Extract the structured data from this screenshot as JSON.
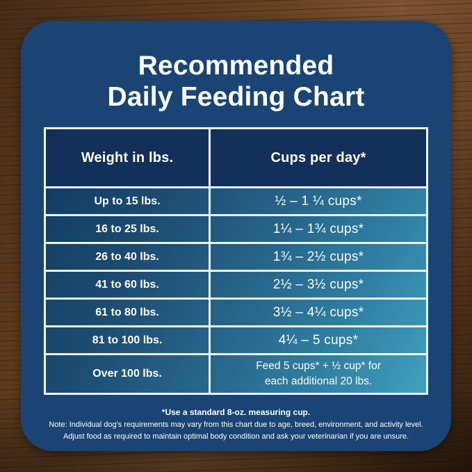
{
  "title": {
    "line1": "Recommended",
    "line2": "Daily Feeding Chart"
  },
  "table": {
    "headers": {
      "weight": "Weight in lbs.",
      "cups": "Cups per day*"
    },
    "rows": [
      {
        "weight": "Up to 15 lbs.",
        "cups": "½ – 1 ¼ cups*"
      },
      {
        "weight": "16 to 25 lbs.",
        "cups": "1¼ – 1¾  cups*"
      },
      {
        "weight": "26 to 40 lbs.",
        "cups": "1¾ – 2½ cups*"
      },
      {
        "weight": "41 to 60 lbs.",
        "cups": "2½ – 3½ cups*"
      },
      {
        "weight": "61 to 80 lbs.",
        "cups": "3½ – 4¼ cups*"
      },
      {
        "weight": "81 to 100 lbs.",
        "cups": "4¼ – 5 cups*"
      }
    ],
    "last_row": {
      "weight": "Over 100 lbs.",
      "cups_line1": "Feed 5 cups* + ½ cup* for",
      "cups_line2": "each additional 20 lbs."
    }
  },
  "notes": {
    "measuring_cup": "*Use a standard 8-oz. measuring cup.",
    "variance": "Note: Individual dog's requirements may vary from this chart due to age, breed, environment, and activity level.",
    "adjust": "Adjust food as required to maintain optimal body condition and ask your veterinarian if you are unsure."
  },
  "colors": {
    "card_blue": "#1a4474",
    "header_navy": "#12305a",
    "row_gradient_start": "#0f3a5e",
    "row_gradient_end": "#42a0bd",
    "divider_white": "#eef5f8",
    "text_white": "#ffffff",
    "wood_brown": "#654324"
  },
  "chart_data": {
    "type": "table",
    "title": "Recommended Daily Feeding Chart",
    "columns": [
      "Weight in lbs.",
      "Cups per day*"
    ],
    "rows": [
      [
        "Up to 15 lbs.",
        "½ – 1 ¼ cups*"
      ],
      [
        "16 to 25 lbs.",
        "1¼ – 1¾ cups*"
      ],
      [
        "26 to 40 lbs.",
        "1¾ – 2½ cups*"
      ],
      [
        "41 to 60 lbs.",
        "2½ – 3½ cups*"
      ],
      [
        "61 to 80 lbs.",
        "3½ – 4¼ cups*"
      ],
      [
        "81 to 100 lbs.",
        "4¼ – 5 cups*"
      ],
      [
        "Over 100 lbs.",
        "Feed 5 cups* + ½ cup* for each additional 20 lbs."
      ]
    ],
    "footnotes": [
      "*Use a standard 8-oz. measuring cup.",
      "Note: Individual dog's requirements may vary from this chart due to age, breed, environment, and activity level.",
      "Adjust food as required to maintain optimal body condition and ask your veterinarian if you are unsure."
    ]
  }
}
